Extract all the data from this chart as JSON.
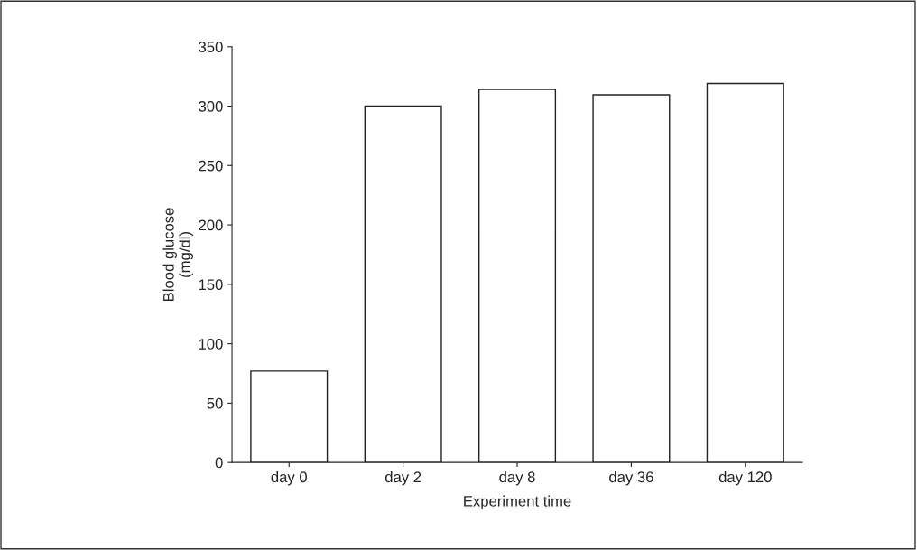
{
  "chart_data": {
    "type": "bar",
    "xlabel": "Experiment time",
    "ylabel": "Blood glucose\n(mg/dl)",
    "categories": [
      "day 0",
      "day 2",
      "day 8",
      "day 36",
      "day 120"
    ],
    "values": [
      77,
      300,
      314,
      309.5,
      319
    ],
    "color": "#ffffff",
    "ylim": [
      0,
      350
    ],
    "yticks": [
      0,
      50,
      100,
      150,
      200,
      250,
      300,
      350
    ],
    "grid": false
  }
}
